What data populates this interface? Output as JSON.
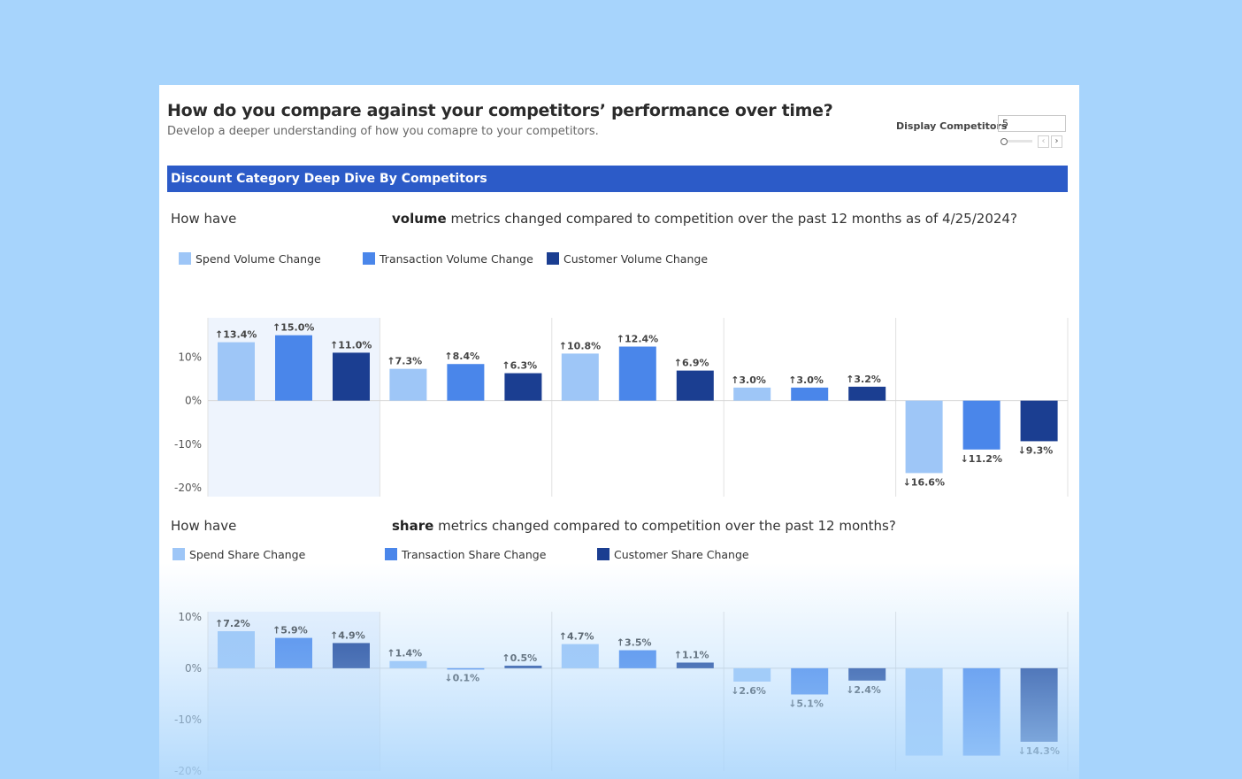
{
  "header": {
    "title": "How do you compare against your competitors’ performance over time?",
    "subtitle": "Develop a deeper understanding of how you comapre to your competitors."
  },
  "display_competitors": {
    "label": "Display Competitors",
    "value": "5",
    "prev_glyph": "‹",
    "next_glyph": "›"
  },
  "banner": "Discount Category Deep Dive By Competitors",
  "section1": {
    "question_prefix": "How have",
    "question_bold": "volume",
    "question_rest": " metrics changed compared to competition over the past 12 months as of 4/25/2024?"
  },
  "section2": {
    "question_prefix": "How have",
    "question_bold": "share",
    "question_rest": " metrics changed compared to competition over the past 12 months?"
  },
  "colors": {
    "light": "#9ec6f7",
    "mid": "#4a86ea",
    "dark": "#1b3e91",
    "accent_banner": "#2c5bc8"
  },
  "chart_data": [
    {
      "type": "bar",
      "categories": [
        "",
        "",
        "",
        "",
        ""
      ],
      "series": [
        {
          "name": "Spend Volume Change",
          "values": [
            13.4,
            7.3,
            10.8,
            3.0,
            -16.6
          ]
        },
        {
          "name": "Transaction Volume Change",
          "values": [
            15.0,
            8.4,
            12.4,
            3.0,
            -11.2
          ]
        },
        {
          "name": "Customer Volume Change",
          "values": [
            11.0,
            6.3,
            6.9,
            3.2,
            -9.3
          ]
        }
      ],
      "ylim": [
        -22,
        19
      ],
      "yticks": [
        10,
        0,
        -10,
        -20
      ],
      "ytick_labels": [
        "10%",
        "0%",
        "-10%",
        "-20%"
      ],
      "data_labels": [
        [
          "13.4%",
          "7.3%",
          "10.8%",
          "3.0%",
          "16.6%"
        ],
        [
          "15.0%",
          "8.4%",
          "12.4%",
          "3.0%",
          "11.2%"
        ],
        [
          "11.0%",
          "6.3%",
          "6.9%",
          "3.2%",
          "9.3%"
        ]
      ],
      "highlighted_group": 0,
      "legend_position": "top-left",
      "grid": false
    },
    {
      "type": "bar",
      "categories": [
        "",
        "",
        "",
        "",
        ""
      ],
      "series": [
        {
          "name": "Spend Share Change",
          "values": [
            7.2,
            1.4,
            4.7,
            -2.6,
            -17.0
          ]
        },
        {
          "name": "Transaction Share Change",
          "values": [
            5.9,
            -0.1,
            3.5,
            -5.1,
            -17.0
          ]
        },
        {
          "name": "Customer Share Change",
          "values": [
            4.9,
            0.5,
            1.1,
            -2.4,
            -14.3
          ]
        }
      ],
      "ylim": [
        -20,
        11
      ],
      "yticks": [
        10,
        0,
        -10,
        -20
      ],
      "ytick_labels": [
        "10%",
        "0%",
        "-10%",
        "-20%"
      ],
      "data_labels": [
        [
          "7.2%",
          "1.4%",
          "4.7%",
          "2.6%",
          ""
        ],
        [
          "5.9%",
          "0.1%",
          "3.5%",
          "5.1%",
          ""
        ],
        [
          "4.9%",
          "0.5%",
          "1.1%",
          "2.4%",
          "14.3%"
        ]
      ],
      "highlighted_group": 0,
      "legend_position": "top-left",
      "grid": false
    }
  ]
}
